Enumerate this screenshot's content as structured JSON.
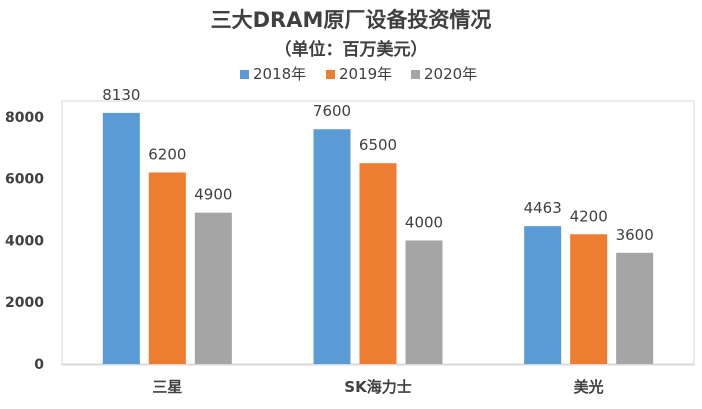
{
  "chart_data": {
    "type": "bar",
    "title": "三大DRAM原厂设备投资情况",
    "subtitle": "（单位：百万美元）",
    "categories": [
      "三星",
      "SK海力士",
      "美光"
    ],
    "series": [
      {
        "name": "2018年",
        "color": "#5B9BD5",
        "values": [
          8130,
          7600,
          4463
        ]
      },
      {
        "name": "2019年",
        "color": "#ED7D31",
        "values": [
          6200,
          6500,
          4200
        ]
      },
      {
        "name": "2020年",
        "color": "#A5A5A5",
        "values": [
          4900,
          4000,
          3600
        ]
      }
    ],
    "yticks": [
      0,
      2000,
      4000,
      6000,
      8000
    ],
    "ylim": [
      0,
      9000
    ],
    "grid": false,
    "legend_position": "top-center",
    "xlabel": "",
    "ylabel": ""
  }
}
